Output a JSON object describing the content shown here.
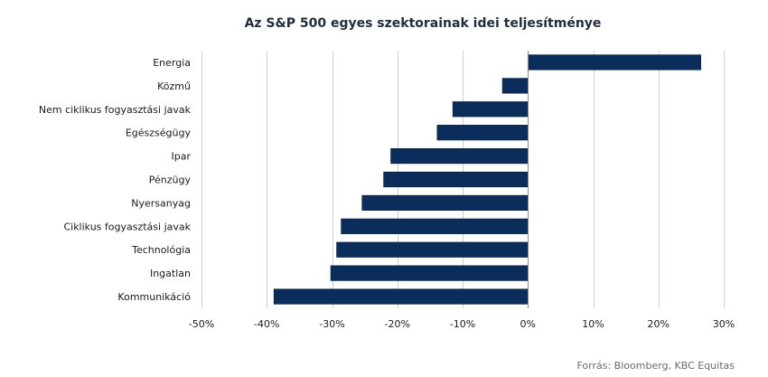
{
  "chart_data": {
    "type": "bar",
    "orientation": "horizontal",
    "title": "Az S&P 500 egyes szektorainak idei teljesítménye",
    "categories": [
      "Energia",
      "Közmű",
      "Nem ciklikus fogyasztási javak",
      "Egészségügy",
      "Ipar",
      "Pénzügy",
      "Nyersanyag",
      "Ciklikus fogyasztási javak",
      "Technológia",
      "Ingatlan",
      "Kommunikáció"
    ],
    "values": [
      26.5,
      -3.9,
      -11.5,
      -13.9,
      -21.0,
      -22.1,
      -25.4,
      -28.6,
      -29.3,
      -30.2,
      -38.9
    ],
    "xlim": [
      -50,
      30
    ],
    "xticks": [
      -50,
      -40,
      -30,
      -20,
      -10,
      0,
      10,
      20,
      30
    ],
    "xtick_labels": [
      "-50%",
      "-40%",
      "-30%",
      "-20%",
      "-10%",
      "0%",
      "10%",
      "20%",
      "30%"
    ],
    "xlabel": "",
    "ylabel": "",
    "grid": true,
    "bar_color": "#0b2d5b",
    "grid_color": "#cfcfcf",
    "source": "Forrás: Bloomberg,  KBC Equitas"
  }
}
